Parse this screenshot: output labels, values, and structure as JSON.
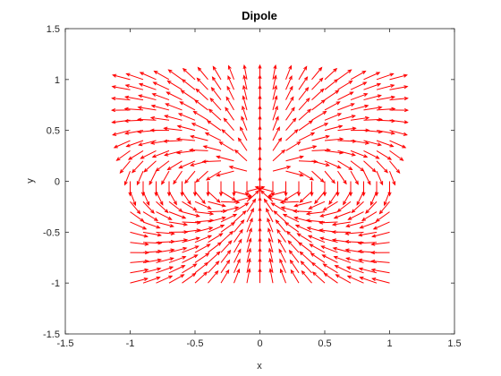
{
  "chart_data": {
    "type": "quiver",
    "title": "Dipole",
    "xlabel": "x",
    "ylabel": "y",
    "xlim": [
      -1.5,
      1.5
    ],
    "ylim": [
      -1.5,
      1.5
    ],
    "xticks": [
      -1.5,
      -1,
      -0.5,
      0,
      0.5,
      1,
      1.5
    ],
    "xtick_labels": [
      "-1.5",
      "-1",
      "-0.5",
      "0",
      "0.5",
      "1",
      "1.5"
    ],
    "yticks": [
      -1.5,
      -1,
      -0.5,
      0,
      0.5,
      1,
      1.5
    ],
    "ytick_labels": [
      "-1.5",
      "-1",
      "-0.5",
      "0",
      "0.5",
      "1",
      "1.5"
    ],
    "grid": false,
    "box": true,
    "field": {
      "description": "Unit-length arrows of the field of a vertical dipole at the origin",
      "x_range": [
        -1,
        1
      ],
      "y_range": [
        -1,
        1
      ],
      "count": 21,
      "arrow_length": 0.14,
      "dipole_moment": [
        0,
        1
      ]
    },
    "colors": {
      "arrow": "#ff0000",
      "axes": "#262626",
      "background": "#ffffff"
    }
  }
}
